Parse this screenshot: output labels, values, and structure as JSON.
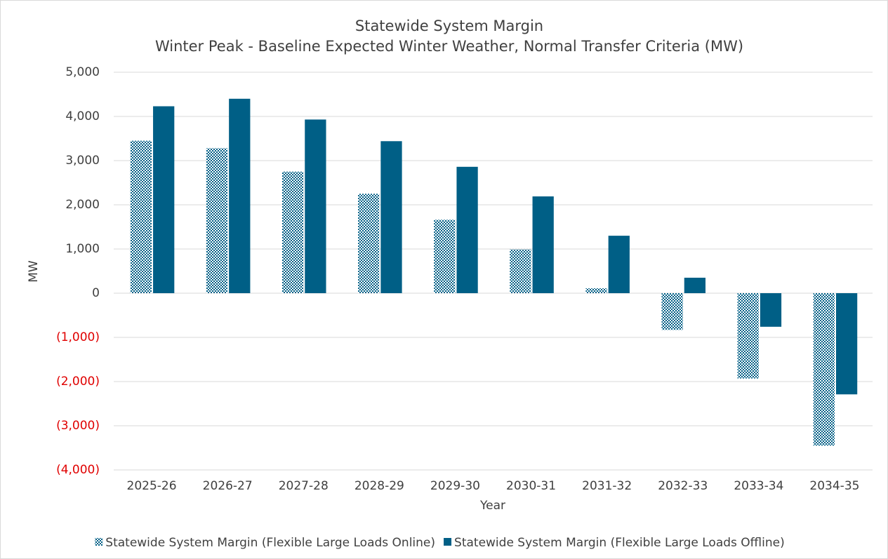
{
  "chart_data": {
    "type": "bar",
    "title": "Statewide System Margin",
    "subtitle": "Winter Peak - Baseline Expected Winter Weather, Normal Transfer Criteria (MW)",
    "x_label": "Year",
    "y_label": "MW",
    "categories": [
      "2025-26",
      "2026-27",
      "2027-28",
      "2028-29",
      "2029-30",
      "2030-31",
      "2031-32",
      "2032-33",
      "2033-34",
      "2034-35"
    ],
    "series": [
      {
        "name": "Statewide System Margin (Flexible Large Loads Online)",
        "color": "#005f86",
        "pattern": "checker",
        "values": [
          3450,
          3280,
          2750,
          2250,
          1660,
          990,
          110,
          -830,
          -1930,
          -3450
        ]
      },
      {
        "name": "Statewide System Margin (Flexible Large Loads Offline)",
        "color": "#005f86",
        "values": [
          4230,
          4400,
          3930,
          3440,
          2860,
          2190,
          1300,
          350,
          -760,
          -2290
        ]
      }
    ],
    "ylim": [
      -4000,
      5000
    ],
    "yticks": [
      {
        "value": -4000,
        "label": "(4,000)"
      },
      {
        "value": -3000,
        "label": "(3,000)"
      },
      {
        "value": -2000,
        "label": "(2,000)"
      },
      {
        "value": -1000,
        "label": "(1,000)"
      },
      0,
      {
        "value": 1000,
        "label": "1,000"
      },
      {
        "value": 2000,
        "label": "2,000"
      },
      {
        "value": 3000,
        "label": "3,000"
      },
      {
        "value": 4000,
        "label": "4,000"
      },
      {
        "value": 5000,
        "label": "5,000"
      }
    ],
    "negative_tick_color": "#e00000",
    "grid": true,
    "legend": "bottom"
  }
}
